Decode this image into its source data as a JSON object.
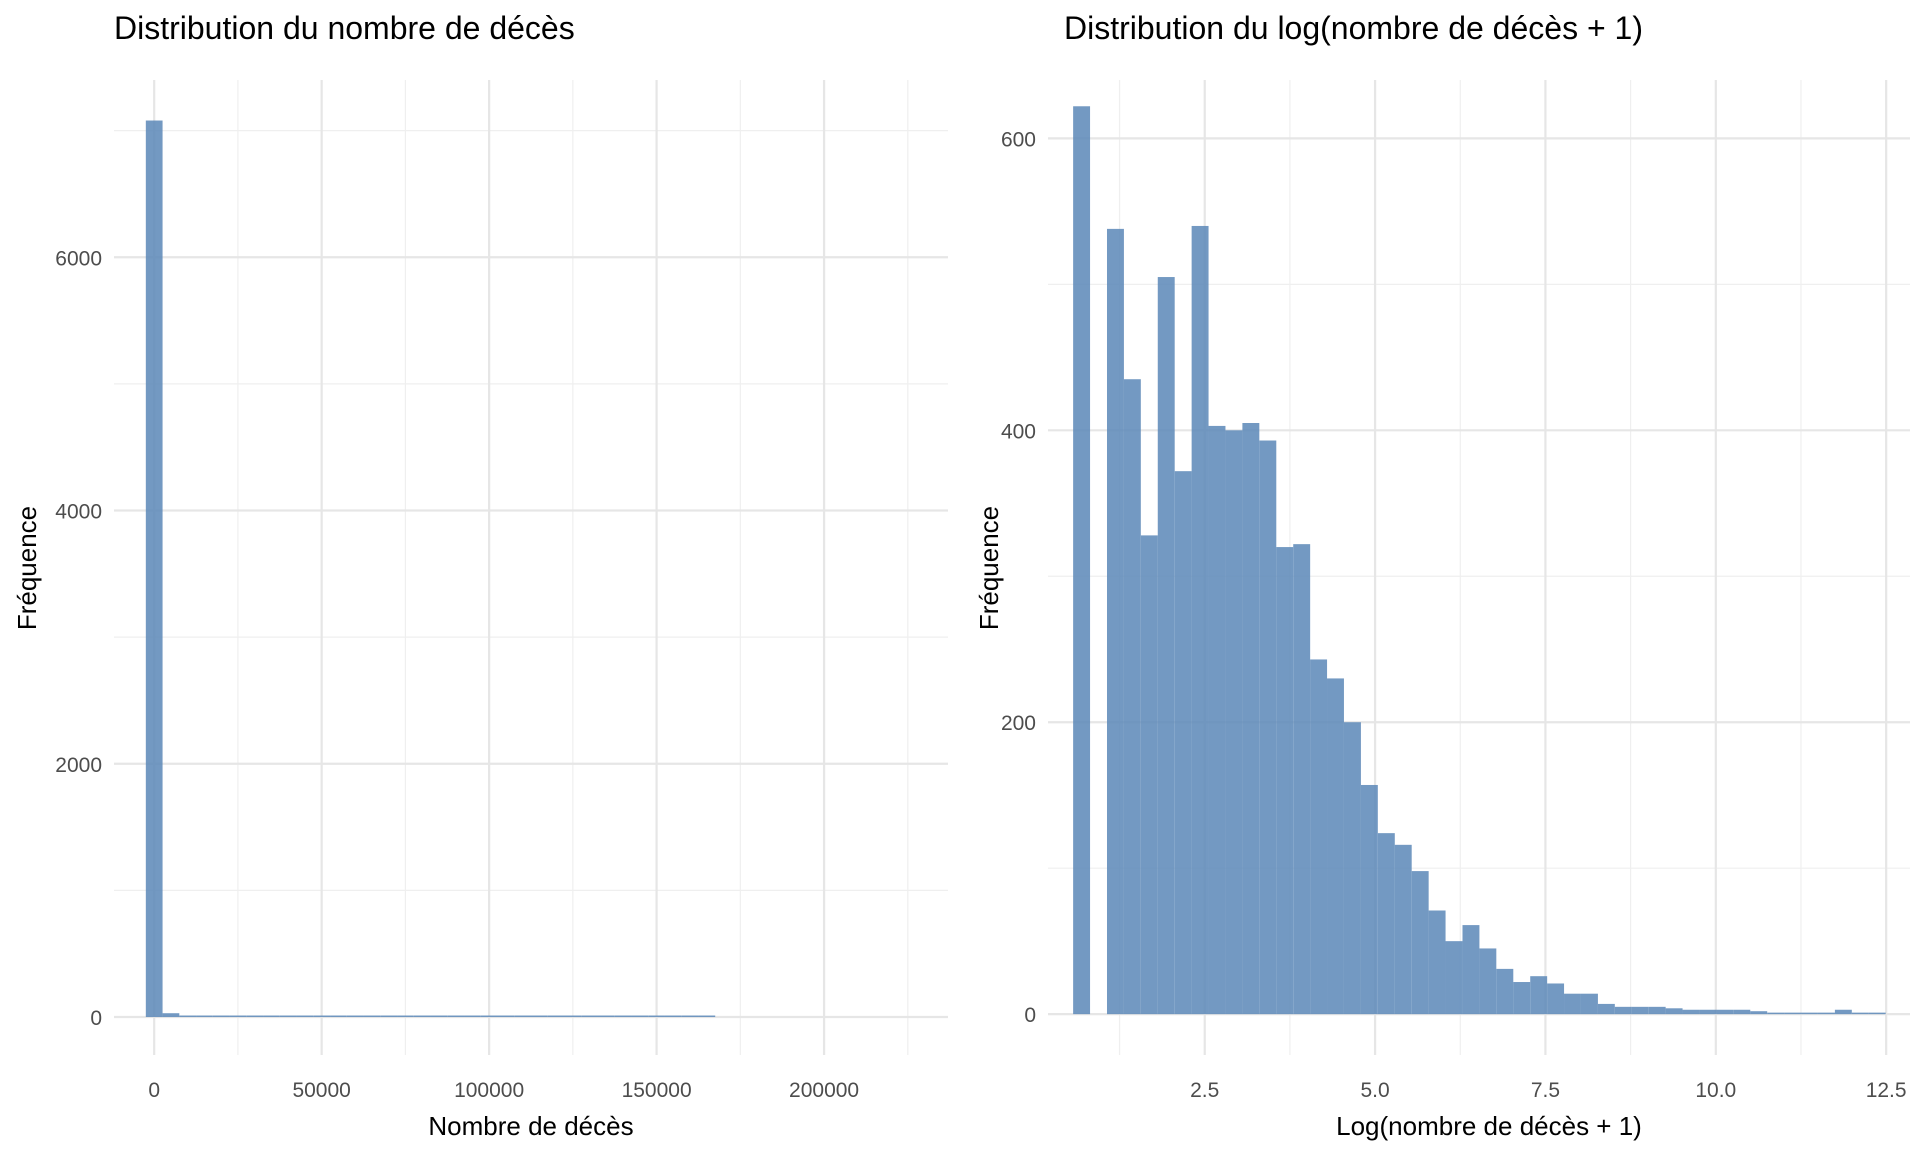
{
  "accent_color": "#5b87b7",
  "chart_data": [
    {
      "type": "bar",
      "subtype": "histogram",
      "title": "Distribution du nombre de décès",
      "xlabel": "Nombre de décès",
      "ylabel": "Fréquence",
      "xlim": [
        -12000,
        237000
      ],
      "ylim": [
        -300,
        7400
      ],
      "x_ticks": [
        0,
        50000,
        100000,
        150000,
        200000
      ],
      "x_tick_labels": [
        "0",
        "50000",
        "100000",
        "150000",
        "200000"
      ],
      "y_ticks": [
        0,
        2000,
        4000,
        6000
      ],
      "y_tick_labels": [
        "0",
        "2000",
        "4000",
        "6000"
      ],
      "grid": true,
      "bar_color": "#5b87b7",
      "bar_opacity": 0.85,
      "bin_width": 5000,
      "bins_x": [
        0,
        5000,
        10000,
        15000,
        20000,
        25000,
        30000,
        35000,
        40000,
        45000,
        50000,
        55000,
        60000,
        65000,
        70000,
        75000,
        80000,
        85000,
        90000,
        95000,
        100000,
        105000,
        110000,
        115000,
        120000,
        125000,
        130000,
        135000,
        140000,
        145000,
        150000,
        155000,
        160000,
        165000
      ],
      "values": [
        7080,
        30,
        10,
        5,
        4,
        3,
        2,
        2,
        1,
        1,
        1,
        1,
        1,
        1,
        1,
        1,
        1,
        1,
        1,
        1,
        1,
        1,
        1,
        1,
        1,
        1,
        1,
        1,
        1,
        1,
        1,
        1,
        1,
        1
      ]
    },
    {
      "type": "bar",
      "subtype": "histogram",
      "title": "Distribution du log(nombre de décès + 1)",
      "xlabel": "Log(nombre de décès + 1)",
      "ylabel": "Fréquence",
      "xlim": [
        0.2,
        12.85
      ],
      "ylim": [
        -28,
        640
      ],
      "x_ticks": [
        2.5,
        5.0,
        7.5,
        10.0,
        12.5
      ],
      "x_tick_labels": [
        "2.5",
        "5.0",
        "7.5",
        "10.0",
        "12.5"
      ],
      "y_ticks": [
        0,
        200,
        400,
        600
      ],
      "y_tick_labels": [
        "0",
        "200",
        "400",
        "600"
      ],
      "grid": true,
      "bar_color": "#5b87b7",
      "bar_opacity": 0.85,
      "bin_width": 0.2484,
      "bins_x": [
        0.693,
        0.941,
        1.19,
        1.438,
        1.687,
        1.935,
        2.184,
        2.432,
        2.68,
        2.929,
        3.177,
        3.426,
        3.674,
        3.923,
        4.171,
        4.419,
        4.668,
        4.916,
        5.165,
        5.413,
        5.662,
        5.91,
        6.158,
        6.407,
        6.655,
        6.904,
        7.152,
        7.401,
        7.649,
        7.897,
        8.146,
        8.394,
        8.643,
        8.891,
        9.14,
        9.388,
        9.636,
        9.885,
        10.133,
        10.382,
        10.63,
        10.879,
        11.127,
        11.375,
        11.624,
        11.872,
        12.121,
        12.369
      ],
      "values": [
        622,
        0,
        538,
        435,
        328,
        505,
        372,
        540,
        403,
        400,
        405,
        393,
        320,
        322,
        243,
        230,
        200,
        157,
        124,
        116,
        98,
        71,
        50,
        61,
        45,
        31,
        22,
        26,
        21,
        14,
        14,
        7,
        5,
        5,
        5,
        4,
        3,
        3,
        3,
        3,
        2,
        1,
        1,
        1,
        1,
        3,
        1,
        1
      ]
    }
  ]
}
